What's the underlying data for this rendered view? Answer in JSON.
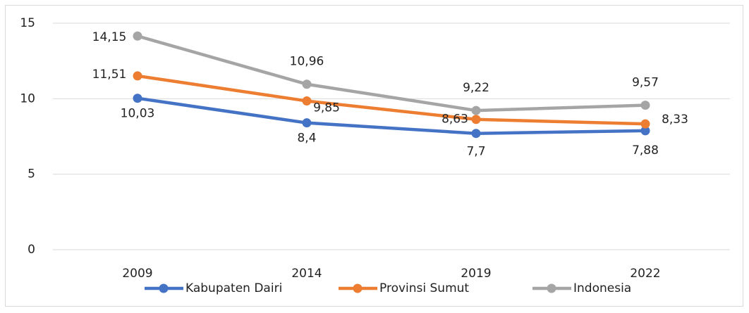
{
  "chart_data": {
    "type": "line",
    "categories": [
      "2009",
      "2014",
      "2019",
      "2022"
    ],
    "series": [
      {
        "name": "Kabupaten Dairi",
        "color": "#4472c4",
        "values": [
          10.03,
          8.4,
          7.7,
          7.88
        ],
        "value_labels": [
          "10,03",
          "8,4",
          "7,7",
          "7,88"
        ]
      },
      {
        "name": "Provinsi Sumut",
        "color": "#ed7d31",
        "values": [
          11.51,
          9.85,
          8.63,
          8.33
        ],
        "value_labels": [
          "11,51",
          "9,85",
          "8,63",
          "8,33"
        ]
      },
      {
        "name": "Indonesia",
        "color": "#a5a5a5",
        "values": [
          14.15,
          10.96,
          9.22,
          9.57
        ],
        "value_labels": [
          "14,15",
          "10,96",
          "9,22",
          "9,57"
        ]
      }
    ],
    "ylim": [
      0,
      15
    ],
    "yticks": [
      0,
      5,
      10,
      15
    ],
    "grid": true,
    "legend": "bottom"
  }
}
